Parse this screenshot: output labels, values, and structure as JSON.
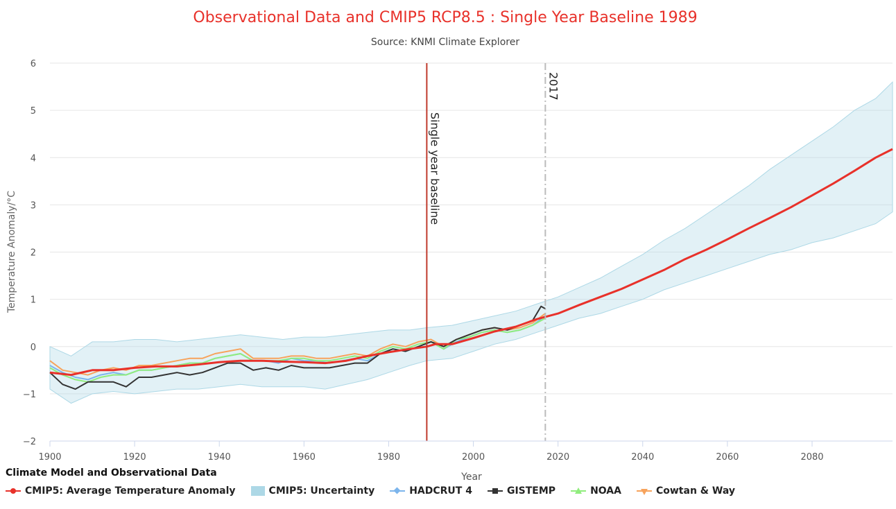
{
  "chart_data": {
    "type": "line",
    "title": "Observational Data and CMIP5 RCP8.5 : Single Year Baseline 1989",
    "subtitle": "Source: KNMI Climate Explorer",
    "xlabel": "Year",
    "ylabel": "Temperature Anomaly/°C",
    "xlim": [
      1900,
      2099
    ],
    "ylim": [
      -2,
      6
    ],
    "x_ticks": [
      "1900",
      "1920",
      "1940",
      "1960",
      "1980",
      "2000",
      "2020",
      "2040",
      "2060",
      "2080"
    ],
    "y_ticks": [
      "−2",
      "−1",
      "0",
      "1",
      "2",
      "3",
      "4",
      "5",
      "6"
    ],
    "grid": true,
    "plot_lines": [
      {
        "x": 1989,
        "label": "Single year baseline",
        "color": "#c0392b",
        "style": "solid"
      },
      {
        "x": 2017,
        "label": "2017",
        "color": "#bbbbbb",
        "style": "dashdot"
      }
    ],
    "legend_title": "Climate Model and Observational Data",
    "legend_position": "bottom-left",
    "series": [
      {
        "name": "CMIP5: Average Temperature Anomaly",
        "color": "#e8312a",
        "x": [
          1900,
          1905,
          1910,
          1915,
          1920,
          1925,
          1930,
          1935,
          1940,
          1945,
          1950,
          1955,
          1960,
          1965,
          1970,
          1975,
          1980,
          1985,
          1989,
          1991,
          1995,
          2000,
          2005,
          2010,
          2015,
          2020,
          2025,
          2030,
          2035,
          2040,
          2045,
          2050,
          2055,
          2060,
          2065,
          2070,
          2075,
          2080,
          2085,
          2090,
          2095,
          2099
        ],
        "values": [
          -0.55,
          -0.6,
          -0.5,
          -0.5,
          -0.45,
          -0.42,
          -0.42,
          -0.38,
          -0.33,
          -0.3,
          -0.3,
          -0.32,
          -0.33,
          -0.35,
          -0.3,
          -0.2,
          -0.12,
          -0.05,
          0.0,
          0.05,
          0.05,
          0.18,
          0.32,
          0.42,
          0.58,
          0.7,
          0.88,
          1.05,
          1.22,
          1.42,
          1.62,
          1.85,
          2.05,
          2.27,
          2.5,
          2.72,
          2.95,
          3.2,
          3.45,
          3.72,
          4.0,
          4.18
        ]
      },
      {
        "name": "CMIP5: Uncertainty",
        "color": "#add8e6",
        "x": [
          1900,
          1905,
          1910,
          1915,
          1920,
          1925,
          1930,
          1935,
          1940,
          1945,
          1950,
          1955,
          1960,
          1965,
          1970,
          1975,
          1980,
          1985,
          1989,
          1995,
          2000,
          2005,
          2010,
          2015,
          2020,
          2025,
          2030,
          2035,
          2040,
          2045,
          2050,
          2055,
          2060,
          2065,
          2070,
          2075,
          2080,
          2085,
          2090,
          2095,
          2099
        ],
        "low": [
          -0.9,
          -1.2,
          -1.0,
          -0.95,
          -1.0,
          -0.95,
          -0.9,
          -0.9,
          -0.85,
          -0.8,
          -0.85,
          -0.85,
          -0.85,
          -0.9,
          -0.8,
          -0.7,
          -0.55,
          -0.4,
          -0.3,
          -0.25,
          -0.1,
          0.05,
          0.15,
          0.3,
          0.45,
          0.6,
          0.7,
          0.85,
          1.0,
          1.2,
          1.35,
          1.5,
          1.65,
          1.8,
          1.95,
          2.05,
          2.2,
          2.3,
          2.45,
          2.6,
          2.85
        ],
        "high": [
          0.0,
          -0.2,
          0.1,
          0.1,
          0.15,
          0.15,
          0.1,
          0.15,
          0.2,
          0.25,
          0.2,
          0.15,
          0.2,
          0.2,
          0.25,
          0.3,
          0.35,
          0.35,
          0.4,
          0.45,
          0.55,
          0.65,
          0.75,
          0.9,
          1.05,
          1.25,
          1.45,
          1.7,
          1.95,
          2.25,
          2.5,
          2.8,
          3.1,
          3.4,
          3.75,
          4.05,
          4.35,
          4.65,
          5.0,
          5.25,
          5.6
        ]
      },
      {
        "name": "HADCRUT 4",
        "color": "#7cb5ec",
        "x": [
          1900,
          1903,
          1906,
          1909,
          1912,
          1915,
          1918,
          1921,
          1924,
          1927,
          1930,
          1933,
          1936,
          1939,
          1942,
          1945,
          1948,
          1951,
          1954,
          1957,
          1960,
          1963,
          1966,
          1969,
          1972,
          1975,
          1978,
          1981,
          1984,
          1987,
          1990,
          1993,
          1996,
          1999,
          2002,
          2005,
          2008,
          2011,
          2014,
          2017
        ],
        "values": [
          -0.4,
          -0.55,
          -0.65,
          -0.7,
          -0.6,
          -0.55,
          -0.6,
          -0.5,
          -0.5,
          -0.45,
          -0.4,
          -0.35,
          -0.35,
          -0.25,
          -0.2,
          -0.15,
          -0.3,
          -0.3,
          -0.35,
          -0.25,
          -0.3,
          -0.3,
          -0.35,
          -0.3,
          -0.25,
          -0.3,
          -0.15,
          -0.05,
          -0.1,
          0.0,
          0.1,
          -0.05,
          0.1,
          0.2,
          0.3,
          0.35,
          0.3,
          0.35,
          0.45,
          0.65
        ]
      },
      {
        "name": "GISTEMP",
        "color": "#333333",
        "x": [
          1900,
          1903,
          1906,
          1909,
          1912,
          1915,
          1918,
          1921,
          1924,
          1927,
          1930,
          1933,
          1936,
          1939,
          1942,
          1945,
          1948,
          1951,
          1954,
          1957,
          1960,
          1963,
          1966,
          1969,
          1972,
          1975,
          1978,
          1981,
          1984,
          1987,
          1990,
          1993,
          1996,
          1999,
          2002,
          2005,
          2008,
          2011,
          2014,
          2016,
          2017
        ],
        "values": [
          -0.55,
          -0.8,
          -0.9,
          -0.75,
          -0.75,
          -0.75,
          -0.85,
          -0.65,
          -0.65,
          -0.6,
          -0.55,
          -0.6,
          -0.55,
          -0.45,
          -0.35,
          -0.35,
          -0.5,
          -0.45,
          -0.5,
          -0.4,
          -0.45,
          -0.45,
          -0.45,
          -0.4,
          -0.35,
          -0.35,
          -0.15,
          -0.05,
          -0.1,
          0.0,
          0.1,
          0.0,
          0.15,
          0.25,
          0.35,
          0.4,
          0.35,
          0.45,
          0.55,
          0.85,
          0.8
        ]
      },
      {
        "name": "NOAA",
        "color": "#90ed7d",
        "x": [
          1900,
          1903,
          1906,
          1909,
          1912,
          1915,
          1918,
          1921,
          1924,
          1927,
          1930,
          1933,
          1936,
          1939,
          1942,
          1945,
          1948,
          1951,
          1954,
          1957,
          1960,
          1963,
          1966,
          1969,
          1972,
          1975,
          1978,
          1981,
          1984,
          1987,
          1990,
          1993,
          1996,
          1999,
          2002,
          2005,
          2008,
          2011,
          2014,
          2017
        ],
        "values": [
          -0.45,
          -0.6,
          -0.7,
          -0.75,
          -0.65,
          -0.6,
          -0.6,
          -0.5,
          -0.5,
          -0.45,
          -0.4,
          -0.35,
          -0.35,
          -0.25,
          -0.2,
          -0.15,
          -0.3,
          -0.3,
          -0.3,
          -0.25,
          -0.25,
          -0.3,
          -0.3,
          -0.25,
          -0.2,
          -0.25,
          -0.1,
          0.0,
          -0.05,
          0.05,
          0.1,
          -0.05,
          0.15,
          0.2,
          0.3,
          0.35,
          0.3,
          0.35,
          0.45,
          0.6
        ]
      },
      {
        "name": "Cowtan & Way",
        "color": "#f7a35c",
        "x": [
          1900,
          1903,
          1906,
          1909,
          1912,
          1915,
          1918,
          1921,
          1924,
          1927,
          1930,
          1933,
          1936,
          1939,
          1942,
          1945,
          1948,
          1951,
          1954,
          1957,
          1960,
          1963,
          1966,
          1969,
          1972,
          1975,
          1978,
          1981,
          1984,
          1987,
          1990,
          1993,
          1996,
          1999,
          2002,
          2005,
          2008,
          2011,
          2014,
          2017
        ],
        "values": [
          -0.3,
          -0.5,
          -0.55,
          -0.6,
          -0.5,
          -0.45,
          -0.5,
          -0.4,
          -0.4,
          -0.35,
          -0.3,
          -0.25,
          -0.25,
          -0.15,
          -0.1,
          -0.05,
          -0.25,
          -0.25,
          -0.25,
          -0.2,
          -0.2,
          -0.25,
          -0.25,
          -0.2,
          -0.15,
          -0.2,
          -0.05,
          0.05,
          0.0,
          0.1,
          0.15,
          0.0,
          0.15,
          0.25,
          0.35,
          0.4,
          0.35,
          0.4,
          0.5,
          0.7
        ]
      }
    ]
  }
}
